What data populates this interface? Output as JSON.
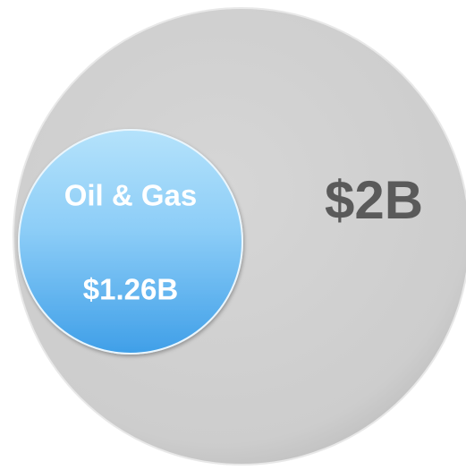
{
  "outer": {
    "label": "$2B"
  },
  "inner": {
    "name": "Oil & Gas",
    "label": "$1.26B"
  }
}
